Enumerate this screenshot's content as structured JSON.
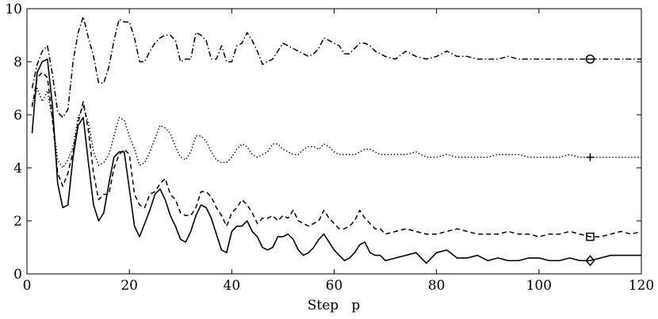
{
  "chart_data": {
    "type": "line",
    "xlabel": "Step   p",
    "ylabel": "",
    "xlim": [
      0,
      120
    ],
    "ylim": [
      0,
      10
    ],
    "x_ticks": [
      0,
      20,
      40,
      60,
      80,
      100,
      120
    ],
    "y_ticks": [
      0,
      2,
      4,
      6,
      8,
      10
    ],
    "grid": false,
    "series": [
      {
        "style": "dash-dot",
        "marker": "circle",
        "marker_x": 110,
        "x": [
          1,
          2,
          3,
          4,
          5,
          6,
          7,
          8,
          9,
          10,
          11,
          12,
          13,
          14,
          15,
          16,
          17,
          18,
          19,
          20,
          21,
          22,
          23,
          24,
          25,
          26,
          27,
          28,
          29,
          30,
          31,
          32,
          33,
          34,
          35,
          36,
          37,
          38,
          39,
          40,
          41,
          42,
          43,
          44,
          45,
          46,
          47,
          48,
          49,
          50,
          51,
          52,
          53,
          54,
          55,
          56,
          57,
          58,
          59,
          60,
          61,
          62,
          63,
          64,
          65,
          66,
          67,
          68,
          69,
          70,
          72,
          74,
          76,
          78,
          80,
          82,
          84,
          86,
          88,
          90,
          92,
          94,
          96,
          98,
          100,
          102,
          104,
          106,
          108,
          110,
          112,
          114,
          116,
          118,
          120
        ],
        "y": [
          7.0,
          7.9,
          8.4,
          8.6,
          7.5,
          6.1,
          5.9,
          6.2,
          8.0,
          9.1,
          9.7,
          8.9,
          8.2,
          7.2,
          7.2,
          7.8,
          8.8,
          9.6,
          9.5,
          9.5,
          8.9,
          8.0,
          8.0,
          8.4,
          8.7,
          8.9,
          9.0,
          9.0,
          8.8,
          8.0,
          8.1,
          8.1,
          9.1,
          9.0,
          8.8,
          8.1,
          8.1,
          8.6,
          8.0,
          8.0,
          8.6,
          8.7,
          9.1,
          8.8,
          8.4,
          7.9,
          8.0,
          8.1,
          8.4,
          8.7,
          8.6,
          8.5,
          8.4,
          8.3,
          8.2,
          8.3,
          8.5,
          8.9,
          8.8,
          8.7,
          8.6,
          8.3,
          8.3,
          8.5,
          8.7,
          8.7,
          8.6,
          8.4,
          8.3,
          8.2,
          8.1,
          8.4,
          8.2,
          8.1,
          8.2,
          8.4,
          8.2,
          8.2,
          8.1,
          8.1,
          8.1,
          8.2,
          8.1,
          8.1,
          8.1,
          8.1,
          8.1,
          8.1,
          8.1,
          8.1,
          8.1,
          8.1,
          8.1,
          8.1,
          8.1
        ]
      },
      {
        "style": "dotted",
        "marker": "plus",
        "marker_x": 110,
        "x": [
          1,
          2,
          3,
          4,
          5,
          6,
          7,
          8,
          9,
          10,
          11,
          12,
          13,
          14,
          15,
          16,
          17,
          18,
          19,
          20,
          21,
          22,
          23,
          24,
          25,
          26,
          27,
          28,
          29,
          30,
          31,
          32,
          33,
          34,
          35,
          36,
          37,
          38,
          39,
          40,
          41,
          42,
          43,
          44,
          45,
          46,
          47,
          48,
          49,
          50,
          51,
          52,
          53,
          54,
          55,
          56,
          57,
          58,
          59,
          60,
          61,
          62,
          63,
          64,
          65,
          66,
          67,
          68,
          69,
          70,
          72,
          74,
          76,
          78,
          80,
          82,
          84,
          86,
          88,
          90,
          92,
          94,
          96,
          98,
          100,
          102,
          104,
          106,
          108,
          110,
          112,
          114,
          116,
          118,
          120
        ],
        "y": [
          6.4,
          7.0,
          6.5,
          6.9,
          5.8,
          4.3,
          4.0,
          4.3,
          4.8,
          5.9,
          6.3,
          5.7,
          4.6,
          4.1,
          4.2,
          4.5,
          5.2,
          5.9,
          5.8,
          5.2,
          4.7,
          4.1,
          4.2,
          4.6,
          5.1,
          5.6,
          5.5,
          5.3,
          4.8,
          4.4,
          4.3,
          4.6,
          5.2,
          5.2,
          5.0,
          4.6,
          4.3,
          4.2,
          4.2,
          4.4,
          4.7,
          4.9,
          4.8,
          4.5,
          4.4,
          4.5,
          4.6,
          4.9,
          4.9,
          4.7,
          4.6,
          4.5,
          4.5,
          4.7,
          4.8,
          4.8,
          4.7,
          4.9,
          4.8,
          4.6,
          4.5,
          4.5,
          4.5,
          4.5,
          4.6,
          4.7,
          4.7,
          4.6,
          4.5,
          4.5,
          4.5,
          4.5,
          4.6,
          4.4,
          4.4,
          4.5,
          4.4,
          4.4,
          4.4,
          4.4,
          4.5,
          4.5,
          4.5,
          4.4,
          4.4,
          4.4,
          4.4,
          4.5,
          4.4,
          4.4,
          4.4,
          4.4,
          4.4,
          4.4,
          4.4
        ]
      },
      {
        "style": "dashed",
        "marker": "square",
        "marker_x": 110,
        "x": [
          1,
          2,
          3,
          4,
          5,
          6,
          7,
          8,
          9,
          10,
          11,
          12,
          13,
          14,
          15,
          16,
          17,
          18,
          19,
          20,
          21,
          22,
          23,
          24,
          25,
          26,
          27,
          28,
          29,
          30,
          31,
          32,
          33,
          34,
          35,
          36,
          37,
          38,
          39,
          40,
          41,
          42,
          43,
          44,
          45,
          46,
          47,
          48,
          49,
          50,
          51,
          52,
          53,
          54,
          55,
          56,
          57,
          58,
          59,
          60,
          61,
          62,
          63,
          64,
          65,
          66,
          67,
          68,
          69,
          70,
          72,
          74,
          76,
          78,
          80,
          82,
          84,
          86,
          88,
          90,
          92,
          94,
          96,
          98,
          100,
          102,
          104,
          106,
          108,
          110,
          112,
          114,
          116,
          118,
          120
        ],
        "y": [
          6.3,
          7.4,
          7.6,
          7.4,
          5.8,
          3.8,
          3.3,
          3.8,
          4.6,
          5.7,
          6.5,
          5.4,
          3.8,
          2.8,
          3.0,
          3.0,
          4.0,
          4.5,
          4.7,
          4.5,
          3.0,
          2.6,
          2.5,
          3.0,
          3.1,
          3.4,
          3.6,
          3.0,
          2.8,
          2.3,
          2.2,
          2.2,
          2.5,
          3.1,
          3.1,
          2.9,
          2.5,
          2.2,
          1.8,
          2.3,
          2.5,
          2.8,
          2.6,
          2.3,
          1.9,
          2.1,
          2.1,
          2.2,
          2.0,
          2.2,
          2.1,
          2.4,
          2.0,
          1.9,
          1.8,
          1.9,
          2.0,
          2.4,
          2.1,
          1.9,
          1.7,
          1.7,
          1.8,
          2.0,
          2.4,
          2.1,
          1.9,
          1.7,
          1.7,
          1.5,
          1.6,
          1.7,
          1.6,
          1.5,
          1.5,
          1.6,
          1.7,
          1.6,
          1.5,
          1.5,
          1.5,
          1.6,
          1.5,
          1.5,
          1.4,
          1.5,
          1.5,
          1.6,
          1.5,
          1.4,
          1.4,
          1.5,
          1.6,
          1.5,
          1.6
        ]
      },
      {
        "style": "solid",
        "marker": "diamond",
        "marker_x": 110,
        "x": [
          1,
          2,
          3,
          4,
          5,
          6,
          7,
          8,
          9,
          10,
          11,
          12,
          13,
          14,
          15,
          16,
          17,
          18,
          19,
          20,
          21,
          22,
          23,
          24,
          25,
          26,
          27,
          28,
          29,
          30,
          31,
          32,
          33,
          34,
          35,
          36,
          37,
          38,
          39,
          40,
          41,
          42,
          43,
          44,
          45,
          46,
          47,
          48,
          49,
          50,
          51,
          52,
          53,
          54,
          55,
          56,
          57,
          58,
          59,
          60,
          61,
          62,
          63,
          64,
          65,
          66,
          67,
          68,
          69,
          70,
          72,
          74,
          76,
          78,
          80,
          82,
          84,
          86,
          88,
          90,
          92,
          94,
          96,
          98,
          100,
          102,
          104,
          106,
          108,
          110,
          112,
          114,
          116,
          118,
          120
        ],
        "y": [
          5.3,
          7.6,
          8.0,
          8.1,
          6.3,
          3.4,
          2.5,
          2.6,
          4.4,
          5.6,
          5.9,
          4.2,
          2.6,
          2.0,
          2.3,
          3.4,
          4.4,
          4.6,
          4.6,
          3.2,
          1.8,
          1.4,
          1.9,
          2.4,
          3.0,
          3.2,
          2.8,
          2.2,
          1.8,
          1.3,
          1.2,
          1.6,
          2.2,
          2.6,
          2.5,
          2.1,
          1.5,
          0.9,
          0.8,
          1.6,
          1.8,
          1.8,
          2.0,
          1.6,
          1.4,
          1.0,
          0.9,
          1.0,
          1.4,
          1.4,
          1.5,
          1.3,
          0.9,
          0.7,
          0.8,
          1.0,
          1.3,
          1.5,
          1.2,
          0.9,
          0.7,
          0.5,
          0.6,
          0.8,
          1.1,
          1.2,
          0.8,
          0.7,
          0.7,
          0.5,
          0.6,
          0.7,
          0.8,
          0.4,
          0.8,
          0.9,
          0.6,
          0.6,
          0.7,
          0.5,
          0.6,
          0.5,
          0.5,
          0.6,
          0.6,
          0.5,
          0.5,
          0.6,
          0.5,
          0.5,
          0.6,
          0.7,
          0.7,
          0.7,
          0.7
        ]
      }
    ]
  }
}
